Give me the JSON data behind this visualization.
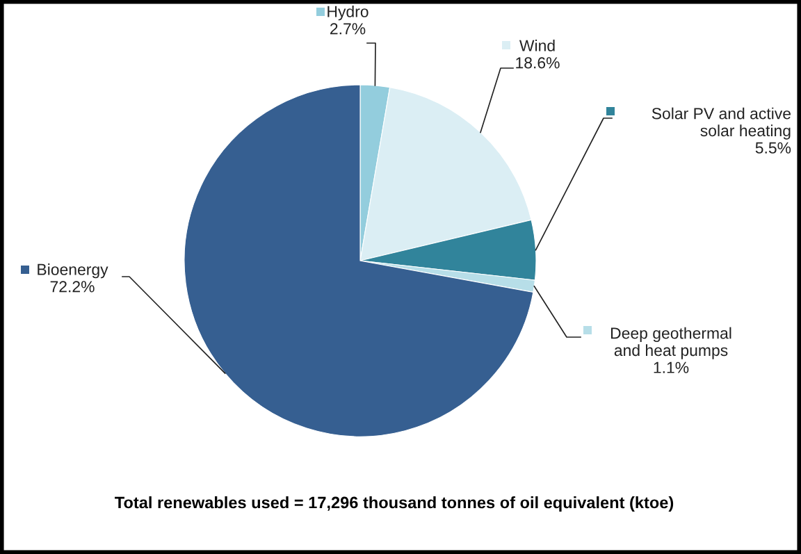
{
  "chart_data": {
    "type": "pie",
    "categories": [
      "Hydro",
      "Wind",
      "Solar PV and active\nsolar heating",
      "Deep geothermal\nand heat pumps",
      "Bioenergy"
    ],
    "values": [
      2.7,
      18.6,
      5.5,
      1.1,
      72.2
    ],
    "value_labels": [
      "2.7%",
      "18.6%",
      "5.5%",
      "1.1%",
      "72.2%"
    ],
    "colors": [
      "#93cddd",
      "#dbeef4",
      "#31849b",
      "#b7dee8",
      "#365f91"
    ],
    "annotations": [
      "Total renewables used = 17,296 thousand tonnes of oil equivalent (ktoe)"
    ],
    "legend": "right"
  }
}
